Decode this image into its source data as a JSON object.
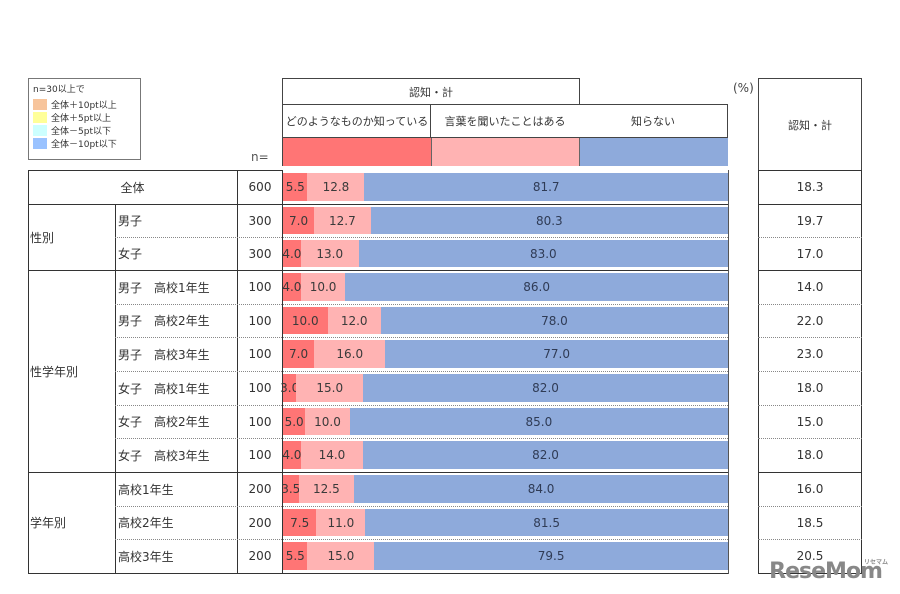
{
  "legend": {
    "title": "n=30以上で",
    "items": [
      {
        "label": "全体＋10pt以上",
        "color": "#f7c49b"
      },
      {
        "label": "全体＋5pt以上",
        "color": "#ffff99"
      },
      {
        "label": "全体－5pt以下",
        "color": "#ccffff"
      },
      {
        "label": "全体－10pt以下",
        "color": "#99c2ff"
      }
    ]
  },
  "header": {
    "group_title": "認知・計",
    "col1": "どのようなものか知っている",
    "col2": "言葉を聞いたことはある",
    "col3": "知らない",
    "unit": "(%)",
    "n_label": "n=",
    "right_title": "認知・計",
    "colors": {
      "col1": "#ff7575",
      "col2": "#ffb3b3",
      "col3": "#8eaadb"
    }
  },
  "groups": [
    {
      "label": "性別",
      "rows": [
        1,
        2
      ]
    },
    {
      "label": "性学年別",
      "rows": [
        3,
        4,
        5,
        6,
        7,
        8
      ]
    },
    {
      "label": "学年別",
      "rows": [
        9,
        10,
        11
      ]
    }
  ],
  "rows": [
    {
      "label": "全体",
      "n": "600",
      "v1": "5.5",
      "v2": "12.8",
      "v3": "81.7",
      "total": "18.3"
    },
    {
      "label": "男子",
      "n": "300",
      "v1": "7.0",
      "v2": "12.7",
      "v3": "80.3",
      "total": "19.7"
    },
    {
      "label": "女子",
      "n": "300",
      "v1": "4.0",
      "v2": "13.0",
      "v3": "83.0",
      "total": "17.0"
    },
    {
      "label": "男子　高校1年生",
      "n": "100",
      "v1": "4.0",
      "v2": "10.0",
      "v3": "86.0",
      "total": "14.0"
    },
    {
      "label": "男子　高校2年生",
      "n": "100",
      "v1": "10.0",
      "v2": "12.0",
      "v3": "78.0",
      "total": "22.0"
    },
    {
      "label": "男子　高校3年生",
      "n": "100",
      "v1": "7.0",
      "v2": "16.0",
      "v3": "77.0",
      "total": "23.0"
    },
    {
      "label": "女子　高校1年生",
      "n": "100",
      "v1": "3.0",
      "v2": "15.0",
      "v3": "82.0",
      "total": "18.0"
    },
    {
      "label": "女子　高校2年生",
      "n": "100",
      "v1": "5.0",
      "v2": "10.0",
      "v3": "85.0",
      "total": "15.0"
    },
    {
      "label": "女子　高校3年生",
      "n": "100",
      "v1": "4.0",
      "v2": "14.0",
      "v3": "82.0",
      "total": "18.0"
    },
    {
      "label": "高校1年生",
      "n": "200",
      "v1": "3.5",
      "v2": "12.5",
      "v3": "84.0",
      "total": "16.0"
    },
    {
      "label": "高校2年生",
      "n": "200",
      "v1": "7.5",
      "v2": "11.0",
      "v3": "81.5",
      "total": "18.5"
    },
    {
      "label": "高校3年生",
      "n": "200",
      "v1": "5.5",
      "v2": "15.0",
      "v3": "79.5",
      "total": "20.5"
    }
  ],
  "watermark": {
    "text": "ReseMom",
    "kana": "リセマム"
  },
  "chart_data": {
    "type": "bar",
    "orientation": "horizontal",
    "stacked": true,
    "title": "",
    "unit": "%",
    "categories": [
      "全体",
      "男子",
      "女子",
      "男子 高校1年生",
      "男子 高校2年生",
      "男子 高校3年生",
      "女子 高校1年生",
      "女子 高校2年生",
      "女子 高校3年生",
      "高校1年生",
      "高校2年生",
      "高校3年生"
    ],
    "n": [
      600,
      300,
      300,
      100,
      100,
      100,
      100,
      100,
      100,
      200,
      200,
      200
    ],
    "series": [
      {
        "name": "どのようなものか知っている",
        "color": "#ff7575",
        "values": [
          5.5,
          7.0,
          4.0,
          4.0,
          10.0,
          7.0,
          3.0,
          5.0,
          4.0,
          3.5,
          7.5,
          5.5
        ]
      },
      {
        "name": "言葉を聞いたことはある",
        "color": "#ffb3b3",
        "values": [
          12.8,
          12.7,
          13.0,
          10.0,
          12.0,
          16.0,
          15.0,
          10.0,
          14.0,
          12.5,
          11.0,
          15.0
        ]
      },
      {
        "name": "知らない",
        "color": "#8eaadb",
        "values": [
          81.7,
          80.3,
          83.0,
          86.0,
          78.0,
          77.0,
          82.0,
          85.0,
          82.0,
          84.0,
          81.5,
          79.5
        ]
      }
    ],
    "totals_label": "認知・計",
    "totals": [
      18.3,
      19.7,
      17.0,
      14.0,
      22.0,
      23.0,
      18.0,
      15.0,
      18.0,
      16.0,
      18.5,
      20.5
    ],
    "xlim": [
      0,
      100
    ],
    "legend_position": "top"
  }
}
